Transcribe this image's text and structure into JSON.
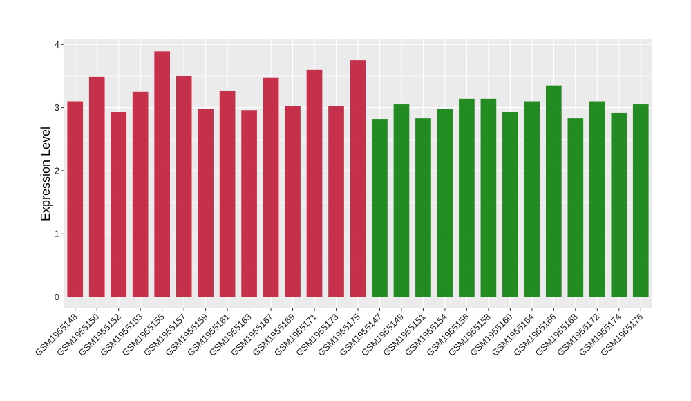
{
  "chart_data": {
    "type": "bar",
    "title": "",
    "xlabel": "",
    "ylabel": "Expression Level",
    "ylim": [
      -0.18,
      4.08
    ],
    "yticks": [
      0,
      1,
      2,
      3,
      4
    ],
    "grid": true,
    "legend": "none",
    "panel_background": "#ebebeb",
    "grid_color": "#ffffff",
    "categories": [
      "GSM1955148",
      "GSM1955150",
      "GSM1955152",
      "GSM1955153",
      "GSM1955155",
      "GSM1955157",
      "GSM1955159",
      "GSM1955161",
      "GSM1955163",
      "GSM1955167",
      "GSM1955169",
      "GSM1955171",
      "GSM1955173",
      "GSM1955175",
      "GSM1955147",
      "GSM1955149",
      "GSM1955151",
      "GSM1955154",
      "GSM1955156",
      "GSM1955158",
      "GSM1955160",
      "GSM1955164",
      "GSM1955166",
      "GSM1955168",
      "GSM1955172",
      "GSM1955174",
      "GSM1955176"
    ],
    "values": [
      3.1,
      3.49,
      2.93,
      3.25,
      3.89,
      3.5,
      2.98,
      3.27,
      2.96,
      3.47,
      3.02,
      3.6,
      3.02,
      3.75,
      2.82,
      3.05,
      2.83,
      2.98,
      3.14,
      3.14,
      2.93,
      3.1,
      3.35,
      2.83,
      3.1,
      2.92,
      3.05
    ],
    "bar_colors": [
      "#c5304a",
      "#c5304a",
      "#c5304a",
      "#c5304a",
      "#c5304a",
      "#c5304a",
      "#c5304a",
      "#c5304a",
      "#c5304a",
      "#c5304a",
      "#c5304a",
      "#c5304a",
      "#c5304a",
      "#c5304a",
      "#228b22",
      "#228b22",
      "#228b22",
      "#228b22",
      "#228b22",
      "#228b22",
      "#228b22",
      "#228b22",
      "#228b22",
      "#228b22",
      "#228b22",
      "#228b22",
      "#228b22"
    ]
  }
}
